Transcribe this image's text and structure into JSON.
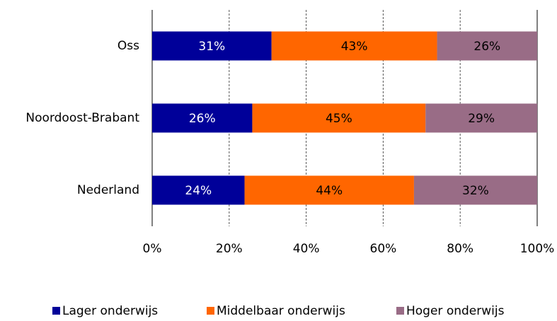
{
  "chart_data": {
    "type": "stacked-barh",
    "categories": [
      "Oss",
      "Noordoost-Brabant",
      "Nederland"
    ],
    "series": [
      {
        "name": "Lager onderwijs",
        "color": "#000099",
        "values": [
          31,
          26,
          24
        ],
        "value_labels": [
          "31%",
          "26%",
          "24%"
        ],
        "label_color": "#ffffff"
      },
      {
        "name": "Middelbaar onderwijs",
        "color": "#ff6600",
        "values": [
          43,
          45,
          44
        ],
        "value_labels": [
          "43%",
          "45%",
          "44%"
        ],
        "label_color": "#000000"
      },
      {
        "name": "Hoger onderwijs",
        "color": "#996c86",
        "values": [
          26,
          29,
          32
        ],
        "value_labels": [
          "26%",
          "29%",
          "32%"
        ],
        "label_color": "#000000"
      }
    ],
    "xlim": [
      0,
      100
    ],
    "xticks": [
      {
        "value": 0,
        "label": "0%"
      },
      {
        "value": 20,
        "label": "20%"
      },
      {
        "value": 40,
        "label": "40%"
      },
      {
        "value": 60,
        "label": "60%"
      },
      {
        "value": 80,
        "label": "80%"
      },
      {
        "value": 100,
        "label": "100%"
      }
    ],
    "grid": true,
    "legend": "bottom"
  }
}
